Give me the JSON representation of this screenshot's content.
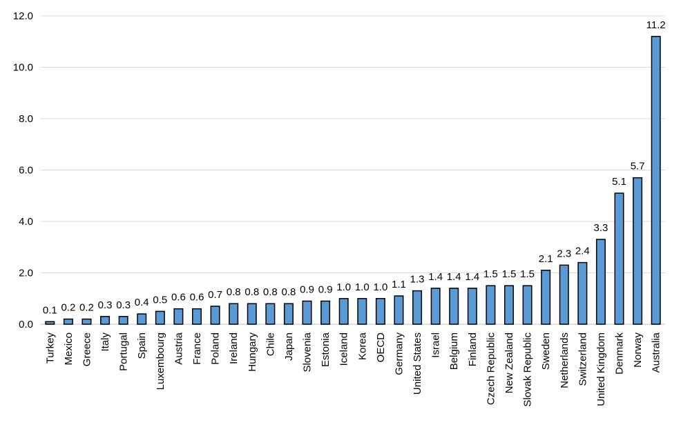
{
  "chart_data": {
    "type": "bar",
    "title": "",
    "xlabel": "",
    "ylabel": "",
    "ylim": [
      0,
      12
    ],
    "y_ticks": [
      "0.0",
      "2.0",
      "4.0",
      "6.0",
      "8.0",
      "10.0",
      "12.0"
    ],
    "grid": true,
    "bar_color": "#5b9bd5",
    "categories": [
      "Turkey",
      "Mexico",
      "Greece",
      "Italy",
      "Portugal",
      "Spain",
      "Luxembourg",
      "Austria",
      "France",
      "Poland",
      "Ireland",
      "Hungary",
      "Chile",
      "Japan",
      "Slovenia",
      "Estonia",
      "Iceland",
      "Korea",
      "OECD",
      "Germany",
      "United States",
      "Israel",
      "Belgium",
      "Finland",
      "Czech Republic",
      "New Zealand",
      "Slovak Republic",
      "Sweden",
      "Netherlands",
      "Switzerland",
      "United Kingdom",
      "Denmark",
      "Norway",
      "Australia"
    ],
    "values": [
      0.1,
      0.2,
      0.2,
      0.3,
      0.3,
      0.4,
      0.5,
      0.6,
      0.6,
      0.7,
      0.8,
      0.8,
      0.8,
      0.8,
      0.9,
      0.9,
      1.0,
      1.0,
      1.0,
      1.1,
      1.3,
      1.4,
      1.4,
      1.4,
      1.5,
      1.5,
      1.5,
      2.1,
      2.3,
      2.4,
      3.3,
      5.1,
      5.7,
      11.2
    ],
    "labels": [
      "0.1",
      "0.2",
      "0.2",
      "0.3",
      "0.3",
      "0.4",
      "0.5",
      "0.6",
      "0.6",
      "0.7",
      "0.8",
      "0.8",
      "0.8",
      "0.8",
      "0.9",
      "0.9",
      "1.0",
      "1.0",
      "1.0",
      "1.1",
      "1.3",
      "1.4",
      "1.4",
      "1.4",
      "1.5",
      "1.5",
      "1.5",
      "2.1",
      "2.3",
      "2.4",
      "3.3",
      "5.1",
      "5.7",
      "11.2"
    ]
  }
}
